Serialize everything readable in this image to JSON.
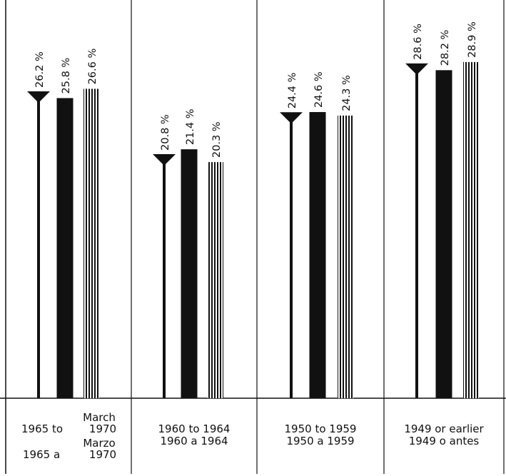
{
  "chart_data": {
    "type": "bar",
    "title": "",
    "xlabel": "",
    "ylabel": "",
    "ylim": [
      0,
      30
    ],
    "grid": false,
    "categories": [
      {
        "lines": [
          "1965 to March 1970",
          "1965 a Marzo 1970"
        ],
        "en_prefix": "1965 to",
        "en_sup": "March",
        "en_year": "1970",
        "es_prefix": "1965 a",
        "es_sup": "Marzo",
        "es_year": "1970"
      },
      {
        "lines": [
          "1960 to 1964",
          "1960 a 1964"
        ]
      },
      {
        "lines": [
          "1950 to 1959",
          "1950 a 1959"
        ]
      },
      {
        "lines": [
          "1949 or earlier",
          "1949 o antes"
        ]
      }
    ],
    "series": [
      {
        "style": "pin",
        "values": [
          26.2,
          20.8,
          24.4,
          28.6
        ],
        "labels": [
          "26.2 %",
          "20.8 %",
          "24.4 %",
          "28.6 %"
        ]
      },
      {
        "style": "solid",
        "values": [
          25.8,
          21.4,
          24.6,
          28.2
        ],
        "labels": [
          "25.8 %",
          "21.4 %",
          "24.6 %",
          "28.2 %"
        ]
      },
      {
        "style": "striped",
        "values": [
          26.6,
          20.3,
          24.3,
          28.9
        ],
        "labels": [
          "26.6 %",
          "20.3 %",
          "24.3 %",
          "28.9 %"
        ]
      }
    ],
    "colors": {
      "ink": "#111111",
      "background": "#ffffff"
    }
  }
}
